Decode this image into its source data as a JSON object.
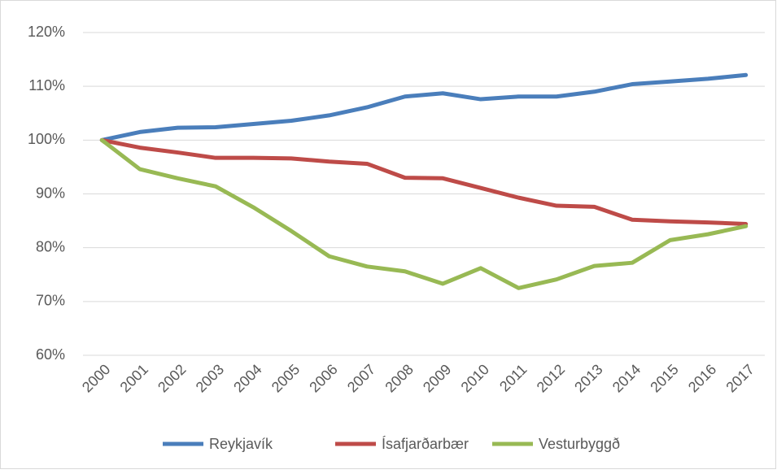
{
  "chart_data": {
    "type": "line",
    "categories": [
      "2000",
      "2001",
      "2002",
      "2003",
      "2004",
      "2005",
      "2006",
      "2007",
      "2008",
      "2009",
      "2010",
      "2011",
      "2012",
      "2013",
      "2014",
      "2015",
      "2016",
      "2017"
    ],
    "series": [
      {
        "name": "Reykjavík",
        "color": "#4a7ebb",
        "values": [
          100,
          101.5,
          102.3,
          102.4,
          103,
          103.6,
          104.6,
          106.1,
          108.1,
          108.7,
          107.6,
          108.1,
          108.1,
          109,
          110.4,
          110.9,
          111.4,
          112.1
        ]
      },
      {
        "name": "Ísafjarðarbær",
        "color": "#be4b48",
        "values": [
          100,
          98.6,
          97.7,
          96.7,
          96.7,
          96.6,
          96,
          95.6,
          93,
          92.9,
          91.1,
          89.3,
          87.8,
          87.6,
          85.2,
          84.9,
          84.7,
          84.4
        ]
      },
      {
        "name": "Vesturbyggð",
        "color": "#98b954",
        "values": [
          100,
          94.6,
          92.9,
          91.4,
          87.5,
          83.1,
          78.4,
          76.5,
          75.6,
          73.3,
          76.2,
          72.5,
          74.1,
          76.6,
          77.2,
          81.4,
          82.5,
          84
        ]
      }
    ],
    "ylim": [
      60,
      120
    ],
    "yticks": [
      {
        "value": 60,
        "label": "60%"
      },
      {
        "value": 70,
        "label": "70%"
      },
      {
        "value": 80,
        "label": "80%"
      },
      {
        "value": 90,
        "label": "90%"
      },
      {
        "value": 100,
        "label": "100%"
      },
      {
        "value": 110,
        "label": "110%"
      },
      {
        "value": 120,
        "label": "120%"
      }
    ],
    "grid": true,
    "legend": "bottom"
  }
}
